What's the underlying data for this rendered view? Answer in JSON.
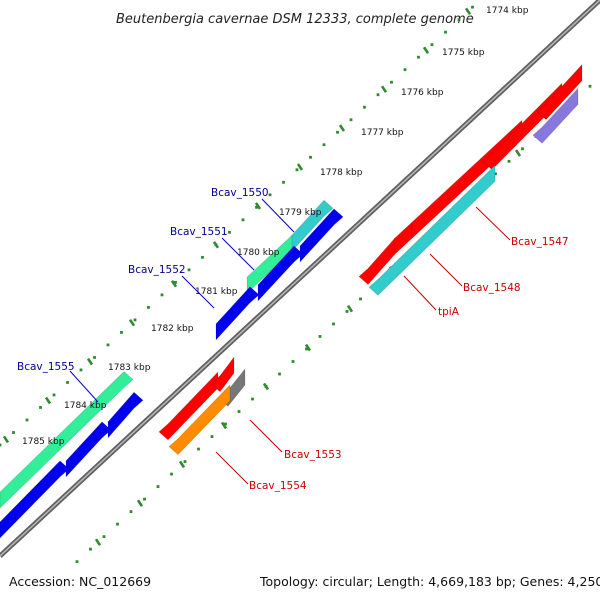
{
  "title": "Beutenbergia cavernae DSM 12333, complete genome",
  "footer": {
    "accession": "Accession: NC_012669",
    "summary": "Topology: circular; Length: 4,669,183 bp; Genes: 4,250"
  },
  "colors": {
    "backbone": "#7a7a7a",
    "tick_dots": "#2e8b2e",
    "label_forward": "#00008b",
    "label_reverse": "#cc0000"
  },
  "ticks": [
    {
      "label": "1774 kbp"
    },
    {
      "label": "1775 kbp"
    },
    {
      "label": "1776 kbp"
    },
    {
      "label": "1777 kbp"
    },
    {
      "label": "1778 kbp"
    },
    {
      "label": "1779 kbp"
    },
    {
      "label": "1780 kbp"
    },
    {
      "label": "1781 kbp"
    },
    {
      "label": "1782 kbp"
    },
    {
      "label": "1783 kbp"
    },
    {
      "label": "1784 kbp"
    },
    {
      "label": "1785 kbp"
    }
  ],
  "gene_labels": [
    {
      "text": "Bcav_1550",
      "strand": "forward"
    },
    {
      "text": "Bcav_1551",
      "strand": "forward"
    },
    {
      "text": "Bcav_1552",
      "strand": "forward"
    },
    {
      "text": "Bcav_1555",
      "strand": "forward"
    },
    {
      "text": "Bcav_1547",
      "strand": "reverse"
    },
    {
      "text": "Bcav_1548",
      "strand": "reverse"
    },
    {
      "text": "tpiA",
      "strand": "reverse"
    },
    {
      "text": "Bcav_1553",
      "strand": "reverse"
    },
    {
      "text": "Bcav_1554",
      "strand": "reverse"
    }
  ],
  "features": [
    {
      "name": "Bcav_1547",
      "strand": "reverse",
      "lane": "outer",
      "color": "#ff0000"
    },
    {
      "name": "Bcav_1548",
      "strand": "reverse",
      "lane": "inner",
      "color": "#33cccc"
    },
    {
      "name": "tpiA",
      "strand": "reverse",
      "lane": "inner",
      "color": "#33cccc"
    },
    {
      "name": "Bcav_1553",
      "strand": "reverse",
      "lane": "outer",
      "color": "#777777"
    },
    {
      "name": "Bcav_1554",
      "strand": "reverse",
      "lane": "inner",
      "color": "#ff8c00"
    },
    {
      "name": "Bcav_1550",
      "strand": "forward",
      "lane": "outer",
      "color": "#33cccc"
    },
    {
      "name": "Bcav_1551",
      "strand": "forward",
      "lane": "outer",
      "color": "#33ee99"
    },
    {
      "name": "Bcav_1552",
      "strand": "forward",
      "lane": "inner",
      "color": "#0000ee"
    },
    {
      "name": "Bcav_1555",
      "strand": "forward",
      "lane": "outer",
      "color": "#33ee99"
    },
    {
      "name": "purple-feature",
      "strand": "reverse",
      "lane": "inner",
      "color": "#8877dd"
    }
  ]
}
